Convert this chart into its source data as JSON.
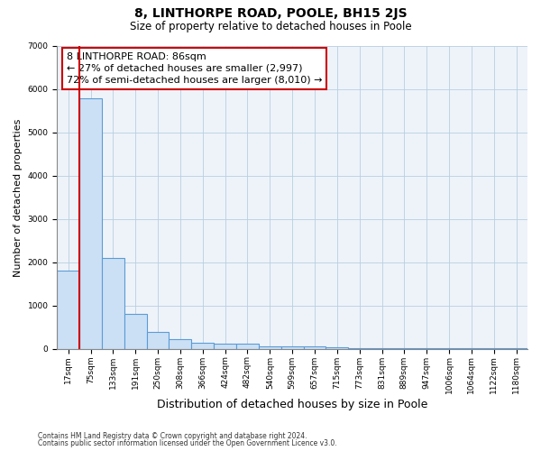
{
  "title": "8, LINTHORPE ROAD, POOLE, BH15 2JS",
  "subtitle": "Size of property relative to detached houses in Poole",
  "xlabel": "Distribution of detached houses by size in Poole",
  "ylabel": "Number of detached properties",
  "footnote1": "Contains HM Land Registry data © Crown copyright and database right 2024.",
  "footnote2": "Contains public sector information licensed under the Open Government Licence v3.0.",
  "bar_labels": [
    "17sqm",
    "75sqm",
    "133sqm",
    "191sqm",
    "250sqm",
    "308sqm",
    "366sqm",
    "424sqm",
    "482sqm",
    "540sqm",
    "599sqm",
    "657sqm",
    "715sqm",
    "773sqm",
    "831sqm",
    "889sqm",
    "947sqm",
    "1006sqm",
    "1064sqm",
    "1122sqm",
    "1180sqm"
  ],
  "bar_values": [
    1800,
    5800,
    2100,
    800,
    380,
    220,
    130,
    110,
    110,
    50,
    50,
    50,
    30,
    20,
    20,
    15,
    10,
    5,
    5,
    5,
    5
  ],
  "bar_color": "#cce0f5",
  "bar_edge_color": "#5b9bd5",
  "vline_color": "#cc0000",
  "vline_pos": 0.57,
  "annotation_line1": "8 LINTHORPE ROAD: 86sqm",
  "annotation_line2": "← 27% of detached houses are smaller (2,997)",
  "annotation_line3": "72% of semi-detached houses are larger (8,010) →",
  "annotation_box_color": "#cc0000",
  "ylim": [
    0,
    7000
  ],
  "yticks": [
    0,
    1000,
    2000,
    3000,
    4000,
    5000,
    6000,
    7000
  ],
  "grid_color": "#b8cfe0",
  "bg_color": "#eef3fa",
  "title_fontsize": 10,
  "subtitle_fontsize": 8.5,
  "ylabel_fontsize": 8,
  "xlabel_fontsize": 9,
  "tick_fontsize": 6.5,
  "annotation_fontsize": 8,
  "footnote_fontsize": 5.5
}
